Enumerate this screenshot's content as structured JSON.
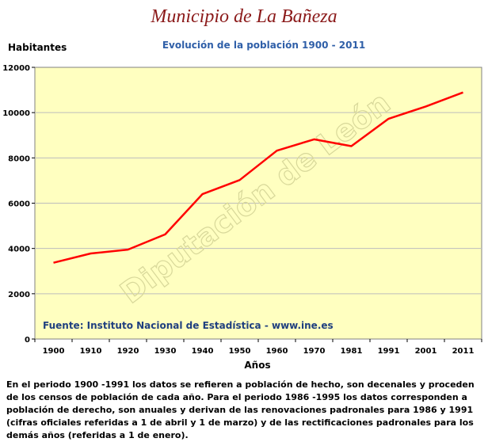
{
  "header": {
    "title": "Municipio de La Bañeza",
    "subtitle": "Evolución de la población 1900 - 2011"
  },
  "watermark": "Diputación de León",
  "source": "Fuente: Instituto Nacional de Estadística - www.ine.es",
  "footnote": "En el periodo 1900 -1991 los datos se refieren a población de hecho, son decenales y proceden de los censos de población de cada año. Para el periodo 1986 -1995 los datos corresponden a población de derecho, son anuales y derivan de las renovaciones padronales para 1986 y 1991 (cifras oficiales referidas a 1 de abril y 1 de marzo) y de las rectificaciones padronales para los demás años (referidas a 1 de enero).",
  "colors": {
    "plot_background": "#ffffc0",
    "line": "#ff0000",
    "title": "#8b1a1a",
    "subtitle": "#2f5fa8",
    "source": "#1f3f7f"
  },
  "chart_data": {
    "type": "line",
    "title": "Municipio de La Bañeza",
    "subtitle": "Evolución de la población 1900 - 2011",
    "xlabel": "Años",
    "ylabel": "Habitantes",
    "categories": [
      "1900",
      "1910",
      "1920",
      "1930",
      "1940",
      "1950",
      "1960",
      "1970",
      "1981",
      "1991",
      "2001",
      "2011"
    ],
    "series": [
      {
        "values": [
          3370,
          3780,
          3950,
          4620,
          6400,
          7020,
          8320,
          8820,
          8520,
          9730,
          10270,
          10890
        ]
      }
    ],
    "yticks": [
      "0",
      "2000",
      "4000",
      "6000",
      "8000",
      "10000",
      "12000"
    ],
    "ylim": [
      0,
      12000
    ],
    "grid": true,
    "legend": "none"
  }
}
